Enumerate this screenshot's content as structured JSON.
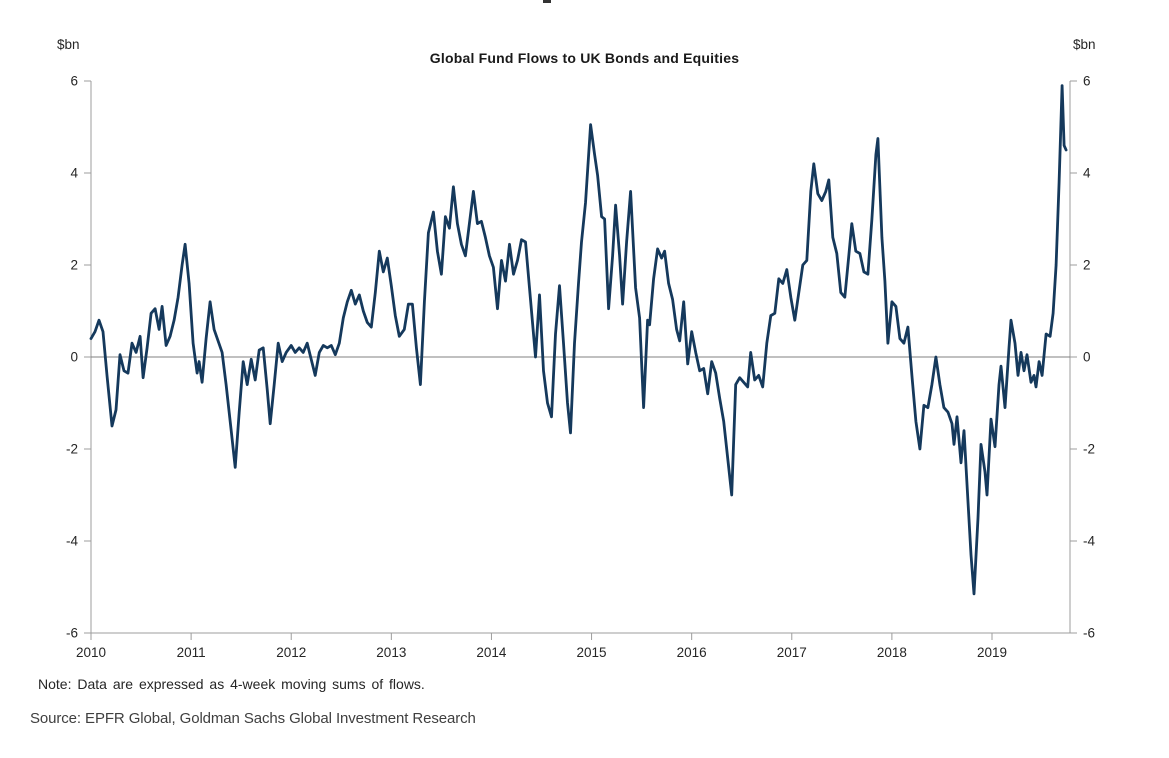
{
  "chart": {
    "title": "Global Fund Flows to UK Bonds and Equities",
    "y_unit_left": "$bn",
    "y_unit_right": "$bn",
    "note": "Note: Data are expressed as 4-week moving sums of flows.",
    "source": "Source: EPFR Global, Goldman Sachs Global Investment Research"
  },
  "colors": {
    "line": "#15395C",
    "axis": "#9c9c9c",
    "zero_line": "#808080",
    "tick_text": "#262626"
  },
  "chart_data": {
    "type": "line",
    "title": "Global Fund Flows to UK Bonds and Equities",
    "xlabel": "",
    "ylabel": "$bn",
    "ylim": [
      -6,
      6
    ],
    "xlim": [
      2010,
      2019.78
    ],
    "y_ticks": [
      6,
      4,
      2,
      0,
      -2,
      -4,
      -6
    ],
    "x_ticks": [
      2010,
      2011,
      2012,
      2013,
      2014,
      2015,
      2016,
      2017,
      2018,
      2019
    ],
    "grid": "horizontal zero line only",
    "legend_position": "none",
    "series": [
      {
        "name": "Global fund flows to UK bonds and equities, 4-week moving sum ($bn)",
        "points": [
          [
            2010.0,
            0.4
          ],
          [
            2010.04,
            0.55
          ],
          [
            2010.08,
            0.8
          ],
          [
            2010.12,
            0.55
          ],
          [
            2010.16,
            -0.4
          ],
          [
            2010.21,
            -1.5
          ],
          [
            2010.25,
            -1.15
          ],
          [
            2010.29,
            0.05
          ],
          [
            2010.33,
            -0.3
          ],
          [
            2010.37,
            -0.35
          ],
          [
            2010.41,
            0.3
          ],
          [
            2010.45,
            0.1
          ],
          [
            2010.49,
            0.45
          ],
          [
            2010.52,
            -0.45
          ],
          [
            2010.56,
            0.2
          ],
          [
            2010.6,
            0.95
          ],
          [
            2010.64,
            1.05
          ],
          [
            2010.68,
            0.6
          ],
          [
            2010.71,
            1.1
          ],
          [
            2010.75,
            0.25
          ],
          [
            2010.79,
            0.45
          ],
          [
            2010.83,
            0.8
          ],
          [
            2010.87,
            1.3
          ],
          [
            2010.91,
            2.0
          ],
          [
            2010.94,
            2.45
          ],
          [
            2010.98,
            1.6
          ],
          [
            2011.02,
            0.3
          ],
          [
            2011.06,
            -0.35
          ],
          [
            2011.08,
            -0.1
          ],
          [
            2011.11,
            -0.55
          ],
          [
            2011.15,
            0.4
          ],
          [
            2011.19,
            1.2
          ],
          [
            2011.23,
            0.6
          ],
          [
            2011.27,
            0.35
          ],
          [
            2011.31,
            0.1
          ],
          [
            2011.35,
            -0.6
          ],
          [
            2011.4,
            -1.6
          ],
          [
            2011.44,
            -2.4
          ],
          [
            2011.48,
            -1.2
          ],
          [
            2011.52,
            -0.1
          ],
          [
            2011.56,
            -0.6
          ],
          [
            2011.6,
            -0.05
          ],
          [
            2011.64,
            -0.5
          ],
          [
            2011.68,
            0.15
          ],
          [
            2011.72,
            0.2
          ],
          [
            2011.76,
            -0.7
          ],
          [
            2011.79,
            -1.45
          ],
          [
            2011.83,
            -0.6
          ],
          [
            2011.87,
            0.3
          ],
          [
            2011.91,
            -0.1
          ],
          [
            2011.95,
            0.1
          ],
          [
            2012.0,
            0.25
          ],
          [
            2012.04,
            0.1
          ],
          [
            2012.08,
            0.2
          ],
          [
            2012.12,
            0.1
          ],
          [
            2012.16,
            0.3
          ],
          [
            2012.2,
            -0.05
          ],
          [
            2012.24,
            -0.4
          ],
          [
            2012.28,
            0.1
          ],
          [
            2012.32,
            0.25
          ],
          [
            2012.36,
            0.2
          ],
          [
            2012.4,
            0.25
          ],
          [
            2012.44,
            0.05
          ],
          [
            2012.48,
            0.3
          ],
          [
            2012.52,
            0.85
          ],
          [
            2012.56,
            1.2
          ],
          [
            2012.6,
            1.45
          ],
          [
            2012.64,
            1.15
          ],
          [
            2012.68,
            1.35
          ],
          [
            2012.72,
            1.0
          ],
          [
            2012.76,
            0.75
          ],
          [
            2012.8,
            0.65
          ],
          [
            2012.84,
            1.4
          ],
          [
            2012.88,
            2.3
          ],
          [
            2012.92,
            1.85
          ],
          [
            2012.96,
            2.15
          ],
          [
            2013.0,
            1.55
          ],
          [
            2013.04,
            0.9
          ],
          [
            2013.08,
            0.45
          ],
          [
            2013.13,
            0.6
          ],
          [
            2013.17,
            1.15
          ],
          [
            2013.21,
            1.15
          ],
          [
            2013.25,
            0.2
          ],
          [
            2013.29,
            -0.6
          ],
          [
            2013.33,
            1.2
          ],
          [
            2013.37,
            2.7
          ],
          [
            2013.42,
            3.15
          ],
          [
            2013.46,
            2.3
          ],
          [
            2013.5,
            1.8
          ],
          [
            2013.54,
            3.05
          ],
          [
            2013.58,
            2.8
          ],
          [
            2013.62,
            3.7
          ],
          [
            2013.66,
            2.9
          ],
          [
            2013.7,
            2.45
          ],
          [
            2013.74,
            2.2
          ],
          [
            2013.78,
            2.9
          ],
          [
            2013.82,
            3.6
          ],
          [
            2013.86,
            2.9
          ],
          [
            2013.9,
            2.95
          ],
          [
            2013.94,
            2.6
          ],
          [
            2013.98,
            2.2
          ],
          [
            2014.02,
            1.95
          ],
          [
            2014.06,
            1.05
          ],
          [
            2014.1,
            2.1
          ],
          [
            2014.14,
            1.65
          ],
          [
            2014.18,
            2.45
          ],
          [
            2014.22,
            1.8
          ],
          [
            2014.26,
            2.1
          ],
          [
            2014.3,
            2.55
          ],
          [
            2014.34,
            2.5
          ],
          [
            2014.38,
            1.5
          ],
          [
            2014.42,
            0.5
          ],
          [
            2014.44,
            0.0
          ],
          [
            2014.48,
            1.35
          ],
          [
            2014.52,
            -0.3
          ],
          [
            2014.56,
            -1.0
          ],
          [
            2014.6,
            -1.3
          ],
          [
            2014.64,
            0.5
          ],
          [
            2014.68,
            1.55
          ],
          [
            2014.72,
            0.3
          ],
          [
            2014.76,
            -1.0
          ],
          [
            2014.79,
            -1.65
          ],
          [
            2014.83,
            0.3
          ],
          [
            2014.87,
            1.6
          ],
          [
            2014.9,
            2.5
          ],
          [
            2014.94,
            3.35
          ],
          [
            2014.99,
            5.05
          ],
          [
            2015.03,
            4.4
          ],
          [
            2015.06,
            3.95
          ],
          [
            2015.1,
            3.05
          ],
          [
            2015.13,
            3.0
          ],
          [
            2015.17,
            1.05
          ],
          [
            2015.21,
            2.2
          ],
          [
            2015.24,
            3.3
          ],
          [
            2015.28,
            2.2
          ],
          [
            2015.31,
            1.15
          ],
          [
            2015.35,
            2.5
          ],
          [
            2015.39,
            3.6
          ],
          [
            2015.44,
            1.5
          ],
          [
            2015.48,
            0.85
          ],
          [
            2015.52,
            -1.1
          ],
          [
            2015.56,
            0.8
          ],
          [
            2015.58,
            0.7
          ],
          [
            2015.62,
            1.7
          ],
          [
            2015.66,
            2.35
          ],
          [
            2015.7,
            2.15
          ],
          [
            2015.73,
            2.3
          ],
          [
            2015.77,
            1.6
          ],
          [
            2015.81,
            1.25
          ],
          [
            2015.85,
            0.6
          ],
          [
            2015.88,
            0.35
          ],
          [
            2015.92,
            1.2
          ],
          [
            2015.96,
            -0.15
          ],
          [
            2016.0,
            0.55
          ],
          [
            2016.04,
            0.1
          ],
          [
            2016.08,
            -0.3
          ],
          [
            2016.12,
            -0.25
          ],
          [
            2016.16,
            -0.8
          ],
          [
            2016.2,
            -0.1
          ],
          [
            2016.24,
            -0.35
          ],
          [
            2016.28,
            -0.9
          ],
          [
            2016.32,
            -1.4
          ],
          [
            2016.36,
            -2.2
          ],
          [
            2016.4,
            -3.0
          ],
          [
            2016.44,
            -0.6
          ],
          [
            2016.48,
            -0.45
          ],
          [
            2016.52,
            -0.55
          ],
          [
            2016.56,
            -0.65
          ],
          [
            2016.59,
            0.1
          ],
          [
            2016.63,
            -0.5
          ],
          [
            2016.67,
            -0.4
          ],
          [
            2016.71,
            -0.65
          ],
          [
            2016.75,
            0.3
          ],
          [
            2016.79,
            0.9
          ],
          [
            2016.83,
            0.95
          ],
          [
            2016.87,
            1.7
          ],
          [
            2016.91,
            1.6
          ],
          [
            2016.95,
            1.9
          ],
          [
            2016.99,
            1.3
          ],
          [
            2017.03,
            0.8
          ],
          [
            2017.07,
            1.4
          ],
          [
            2017.11,
            2.0
          ],
          [
            2017.15,
            2.1
          ],
          [
            2017.19,
            3.6
          ],
          [
            2017.22,
            4.2
          ],
          [
            2017.26,
            3.55
          ],
          [
            2017.3,
            3.4
          ],
          [
            2017.34,
            3.6
          ],
          [
            2017.37,
            3.85
          ],
          [
            2017.41,
            2.6
          ],
          [
            2017.45,
            2.25
          ],
          [
            2017.49,
            1.4
          ],
          [
            2017.53,
            1.3
          ],
          [
            2017.57,
            2.2
          ],
          [
            2017.6,
            2.9
          ],
          [
            2017.64,
            2.3
          ],
          [
            2017.68,
            2.25
          ],
          [
            2017.72,
            1.85
          ],
          [
            2017.76,
            1.8
          ],
          [
            2017.8,
            3.0
          ],
          [
            2017.84,
            4.4
          ],
          [
            2017.86,
            4.75
          ],
          [
            2017.9,
            2.6
          ],
          [
            2017.93,
            1.65
          ],
          [
            2017.96,
            0.3
          ],
          [
            2018.0,
            1.2
          ],
          [
            2018.04,
            1.1
          ],
          [
            2018.08,
            0.4
          ],
          [
            2018.12,
            0.3
          ],
          [
            2018.16,
            0.65
          ],
          [
            2018.2,
            -0.4
          ],
          [
            2018.24,
            -1.4
          ],
          [
            2018.28,
            -2.0
          ],
          [
            2018.32,
            -1.05
          ],
          [
            2018.36,
            -1.1
          ],
          [
            2018.4,
            -0.6
          ],
          [
            2018.44,
            0.0
          ],
          [
            2018.48,
            -0.6
          ],
          [
            2018.52,
            -1.1
          ],
          [
            2018.56,
            -1.2
          ],
          [
            2018.6,
            -1.45
          ],
          [
            2018.62,
            -1.9
          ],
          [
            2018.65,
            -1.3
          ],
          [
            2018.69,
            -2.3
          ],
          [
            2018.72,
            -1.6
          ],
          [
            2018.76,
            -3.15
          ],
          [
            2018.79,
            -4.3
          ],
          [
            2018.82,
            -5.15
          ],
          [
            2018.86,
            -3.5
          ],
          [
            2018.89,
            -1.9
          ],
          [
            2018.93,
            -2.5
          ],
          [
            2018.95,
            -3.0
          ],
          [
            2018.99,
            -1.35
          ],
          [
            2019.03,
            -1.95
          ],
          [
            2019.07,
            -0.6
          ],
          [
            2019.09,
            -0.2
          ],
          [
            2019.13,
            -1.1
          ],
          [
            2019.17,
            0.2
          ],
          [
            2019.19,
            0.8
          ],
          [
            2019.23,
            0.3
          ],
          [
            2019.26,
            -0.4
          ],
          [
            2019.29,
            0.1
          ],
          [
            2019.32,
            -0.3
          ],
          [
            2019.35,
            0.05
          ],
          [
            2019.39,
            -0.55
          ],
          [
            2019.42,
            -0.4
          ],
          [
            2019.44,
            -0.65
          ],
          [
            2019.47,
            -0.1
          ],
          [
            2019.5,
            -0.4
          ],
          [
            2019.54,
            0.5
          ],
          [
            2019.58,
            0.45
          ],
          [
            2019.61,
            0.95
          ],
          [
            2019.64,
            2.0
          ],
          [
            2019.67,
            3.8
          ],
          [
            2019.7,
            5.9
          ],
          [
            2019.72,
            4.6
          ],
          [
            2019.74,
            4.5
          ]
        ]
      }
    ]
  }
}
